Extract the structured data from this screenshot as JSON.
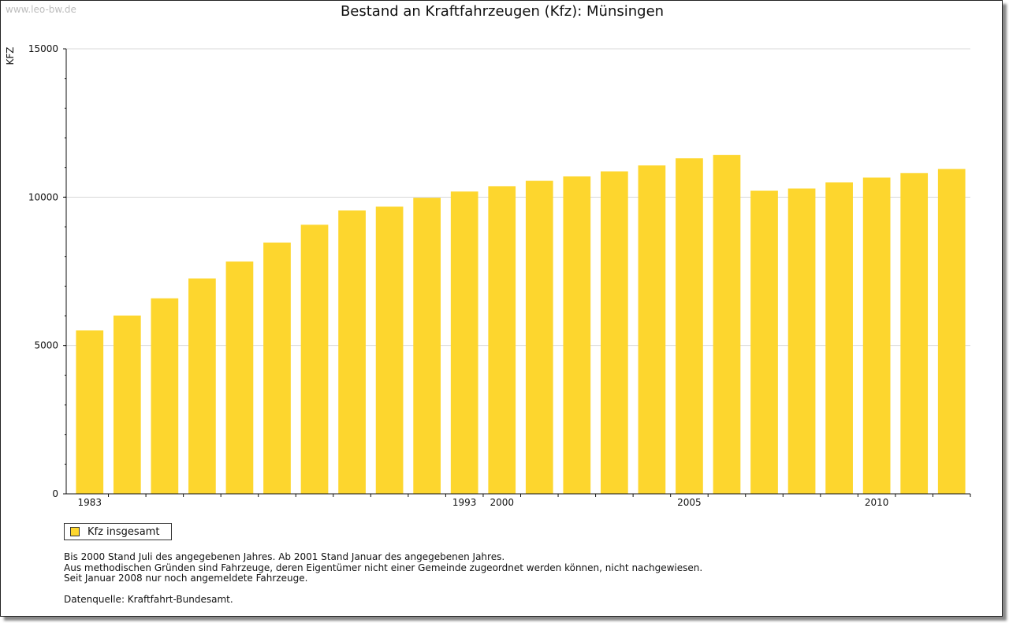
{
  "watermark": "www.leo-bw.de",
  "legend_color": "#FDD62E",
  "chart_data": {
    "type": "bar",
    "title": "Bestand an Kraftfahrzeugen (Kfz): Münsingen",
    "xlabel": "",
    "ylabel": "KFZ",
    "ylim": [
      0,
      15000
    ],
    "yticks": [
      "0",
      "5000",
      "10000",
      "15000"
    ],
    "xtick_labels": [
      "1983",
      "1993",
      "2000",
      "2005",
      "2010"
    ],
    "categories": [
      "1983",
      "1984",
      "1985",
      "1986",
      "1987",
      "1988",
      "1989",
      "1990",
      "1991",
      "1992",
      "1993",
      "2000",
      "2001",
      "2002",
      "2003",
      "2004",
      "2005",
      "2006",
      "2007",
      "2008",
      "2009",
      "2010",
      "2011",
      "2012"
    ],
    "series": [
      {
        "name": "Kfz insgesamt",
        "values": [
          5510,
          6010,
          6590,
          7260,
          7830,
          8470,
          9070,
          9550,
          9680,
          9980,
          10190,
          10370,
          10550,
          10700,
          10870,
          11070,
          11310,
          11420,
          10220,
          10290,
          10500,
          10660,
          10810,
          10950
        ]
      }
    ],
    "grid": true,
    "legend_position": "bottom-left"
  },
  "notes": [
    "Bis 2000 Stand Juli des angegebenen Jahres. Ab 2001 Stand Januar des angegebenen Jahres.",
    "Aus methodischen Gründen sind Fahrzeuge, deren Eigentümer nicht einer Gemeinde zugeordnet werden können, nicht nachgewiesen.",
    "Seit Januar 2008 nur noch angemeldete Fahrzeuge."
  ],
  "source": "Datenquelle: Kraftfahrt-Bundesamt."
}
